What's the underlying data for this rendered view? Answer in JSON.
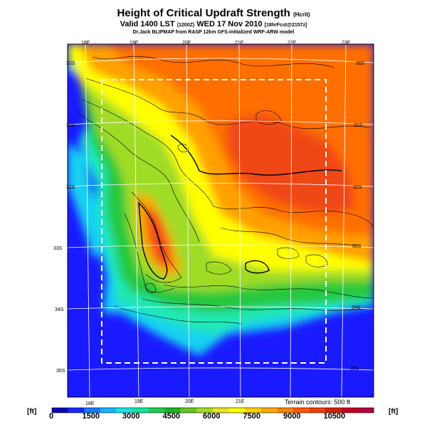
{
  "header": {
    "title": "Height of Critical Updraft Strength",
    "title_suffix": "(Hcrit)",
    "subtitle": "Valid 1400 LST",
    "subtitle_code": "(1200Z)",
    "subtitle_date": "WED 17 Nov 2010",
    "subtitle_fcst": "[18hrFcst@2157z]",
    "credit": "Dr.Jack BLIPMAP from RASP 12km GFS-initialized WRF-ARW model"
  },
  "map": {
    "lon_labels_top": [
      "18E",
      "19E",
      "20E",
      "21E",
      "22E",
      "23E"
    ],
    "lon_labels_bottom": [
      "18E",
      "19E",
      "20E",
      "21E"
    ],
    "lat_labels_left": [
      "30S",
      "31S",
      "32S",
      "33S",
      "34S",
      "35S"
    ],
    "lat_labels_right": [
      "30S",
      "31S",
      "32S",
      "33S",
      "34S",
      "35S"
    ],
    "terrain_note": "Terrain contours: 500 ft",
    "colors": {
      "ocean": "#1a1aff",
      "cyan": "#19d1f0",
      "aqua": "#22e8b4",
      "green": "#28c83c",
      "lime": "#a0dc28",
      "yellow": "#ffff00",
      "orange": "#ffa000",
      "deep_orange": "#ff6e00",
      "red_orange": "#f04618"
    }
  },
  "colorbar": {
    "unit_left": "[ft]",
    "unit_right": "[ft]",
    "tick_labels": [
      "0",
      "1500",
      "3000",
      "4500",
      "6000",
      "7500",
      "9000",
      "10500"
    ],
    "colors": [
      "#0a0ab4",
      "#1428ff",
      "#1478ff",
      "#14b4ff",
      "#14e6e6",
      "#14e6a0",
      "#1ecc50",
      "#1eb41e",
      "#64c81e",
      "#a0dc1e",
      "#e6e61e",
      "#ffff00",
      "#ffd200",
      "#ffaa00",
      "#ff8200",
      "#ff5a00",
      "#f03c00",
      "#dc1e00",
      "#c8001e",
      "#b4003c"
    ]
  }
}
